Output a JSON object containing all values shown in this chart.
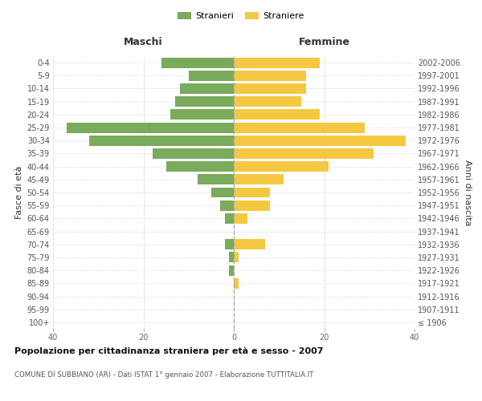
{
  "age_groups": [
    "100+",
    "95-99",
    "90-94",
    "85-89",
    "80-84",
    "75-79",
    "70-74",
    "65-69",
    "60-64",
    "55-59",
    "50-54",
    "45-49",
    "40-44",
    "35-39",
    "30-34",
    "25-29",
    "20-24",
    "15-19",
    "10-14",
    "5-9",
    "0-4"
  ],
  "birth_years": [
    "≤ 1906",
    "1907-1911",
    "1912-1916",
    "1917-1921",
    "1922-1926",
    "1927-1931",
    "1932-1936",
    "1937-1941",
    "1942-1946",
    "1947-1951",
    "1952-1956",
    "1957-1961",
    "1962-1966",
    "1967-1971",
    "1972-1976",
    "1977-1981",
    "1982-1986",
    "1987-1991",
    "1992-1996",
    "1997-2001",
    "2002-2006"
  ],
  "maschi": [
    0,
    0,
    0,
    0,
    1,
    1,
    2,
    0,
    2,
    3,
    5,
    8,
    15,
    18,
    32,
    37,
    14,
    13,
    12,
    10,
    16
  ],
  "femmine": [
    0,
    0,
    0,
    1,
    0,
    1,
    7,
    0,
    3,
    8,
    8,
    11,
    21,
    31,
    38,
    29,
    19,
    15,
    16,
    16,
    19
  ],
  "maschi_color": "#7aaa5b",
  "femmine_color": "#f5c842",
  "background_color": "#ffffff",
  "grid_color": "#cccccc",
  "title": "Popolazione per cittadinanza straniera per età e sesso - 2007",
  "subtitle": "COMUNE DI SUBBIANO (AR) - Dati ISTAT 1° gennaio 2007 - Elaborazione TUTTITALIA.IT",
  "xlabel_left": "Maschi",
  "xlabel_right": "Femmine",
  "ylabel_left": "Fasce di età",
  "ylabel_right": "Anni di nascita",
  "legend_stranieri": "Stranieri",
  "legend_straniere": "Straniere",
  "xlim": 40,
  "bar_height": 0.8
}
